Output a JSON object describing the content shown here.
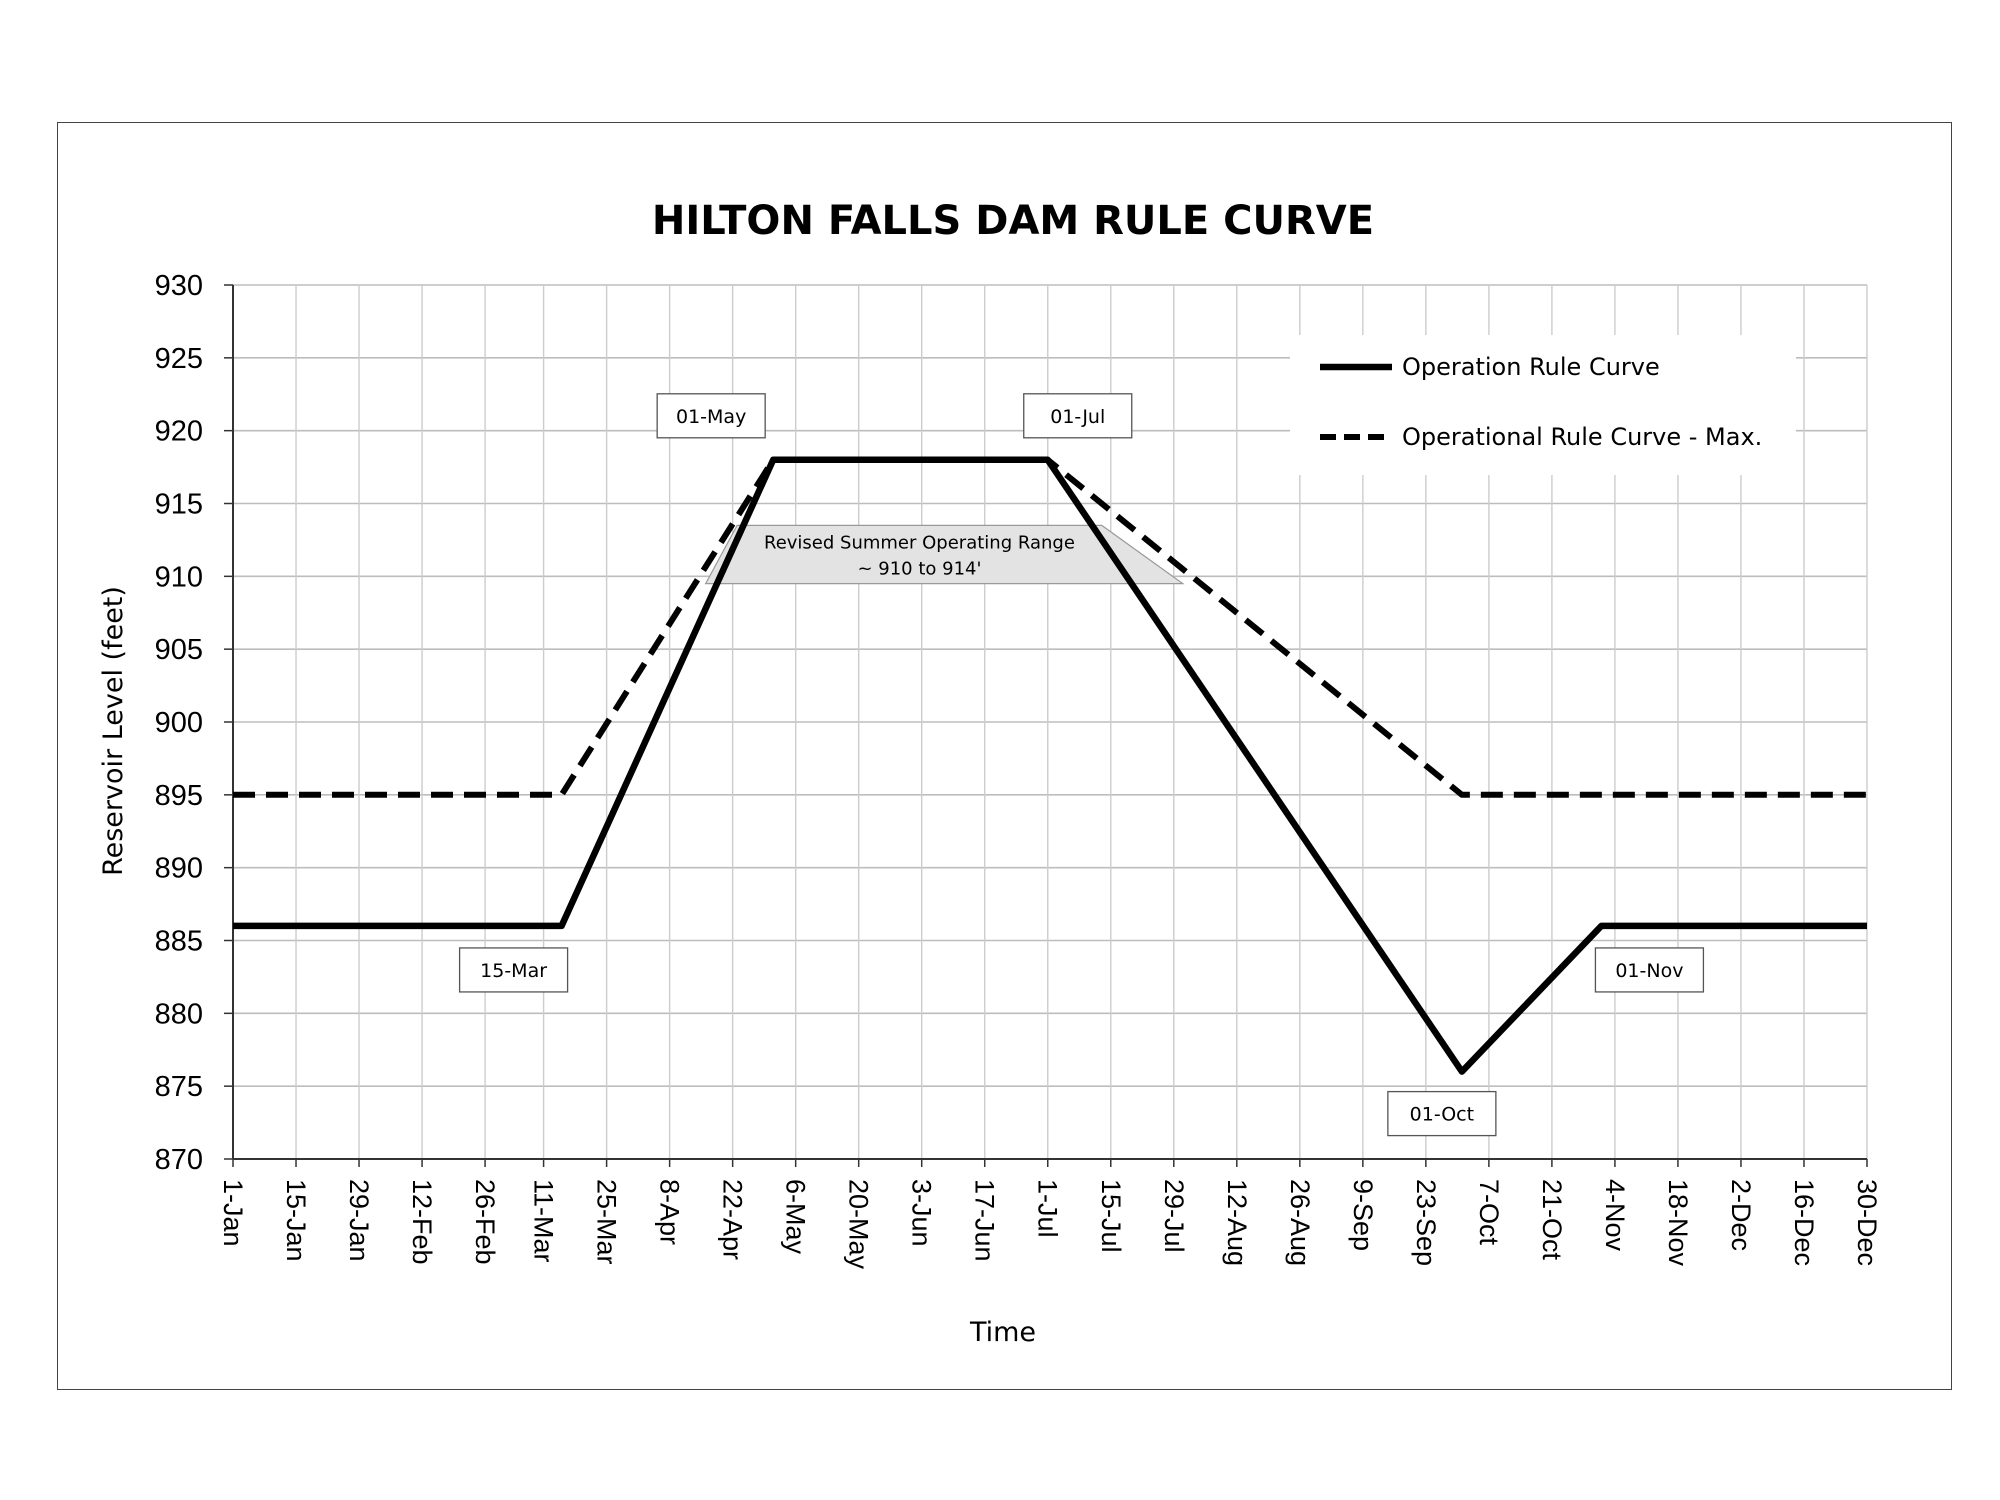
{
  "chart_data": {
    "type": "line",
    "title": "HILTON FALLS DAM RULE CURVE",
    "xlabel": "Time",
    "ylabel": "Reservoir Level (feet)",
    "ylim": [
      870,
      930
    ],
    "y_ticks": [
      870,
      875,
      880,
      885,
      890,
      895,
      900,
      905,
      910,
      915,
      920,
      925,
      930
    ],
    "x_range": [
      "1-Jan",
      "30-Dec"
    ],
    "x_tick_labels": [
      "1-Jan",
      "15-Jan",
      "29-Jan",
      "12-Feb",
      "26-Feb",
      "11-Mar",
      "25-Mar",
      "8-Apr",
      "22-Apr",
      "6-May",
      "20-May",
      "3-Jun",
      "17-Jun",
      "1-Jul",
      "15-Jul",
      "29-Jul",
      "12-Aug",
      "26-Aug",
      "9-Sep",
      "23-Sep",
      "7-Oct",
      "21-Oct",
      "4-Nov",
      "18-Nov",
      "2-Dec",
      "16-Dec",
      "30-Dec"
    ],
    "grid": true,
    "legend_position": "top-right",
    "series": [
      {
        "name": "Operation Rule Curve",
        "style": "solid",
        "color": "#000000",
        "points": [
          {
            "x": "1-Jan",
            "y": 886
          },
          {
            "x": "15-Mar",
            "y": 886
          },
          {
            "x": "1-May",
            "y": 918
          },
          {
            "x": "1-Jul",
            "y": 918
          },
          {
            "x": "1-Oct",
            "y": 876
          },
          {
            "x": "1-Nov",
            "y": 886
          },
          {
            "x": "30-Dec",
            "y": 886
          }
        ]
      },
      {
        "name": "Operational Rule Curve - Max.",
        "style": "dashed",
        "color": "#000000",
        "points": [
          {
            "x": "1-Jan",
            "y": 895
          },
          {
            "x": "15-Mar",
            "y": 895
          },
          {
            "x": "1-May",
            "y": 918
          },
          {
            "x": "1-Jul",
            "y": 918
          },
          {
            "x": "1-Oct",
            "y": 895
          },
          {
            "x": "30-Dec",
            "y": 895
          }
        ]
      }
    ],
    "annotations": [
      {
        "label": "01-May",
        "anchor": {
          "x": "1-May",
          "y": 918
        },
        "placement": "above-left"
      },
      {
        "label": "01-Jul",
        "anchor": {
          "x": "1-Jul",
          "y": 918
        },
        "placement": "above-right"
      },
      {
        "label": "15-Mar",
        "anchor": {
          "x": "15-Mar",
          "y": 886
        },
        "placement": "below-left"
      },
      {
        "label": "01-Nov",
        "anchor": {
          "x": "1-Nov",
          "y": 886
        },
        "placement": "below-right"
      },
      {
        "label": "01-Oct",
        "anchor": {
          "x": "1-Oct",
          "y": 876
        },
        "placement": "below"
      }
    ],
    "range_annotation": {
      "line1": "Revised Summer Operating Range",
      "line2": "~ 910 to 914'",
      "y_range": [
        909.5,
        913.5
      ],
      "x_range_top": [
        "23-Apr",
        "13-Jul"
      ],
      "x_range_bottom": [
        "16-Apr",
        "31-Jul"
      ],
      "fill_color": "#e3e3e3"
    }
  }
}
